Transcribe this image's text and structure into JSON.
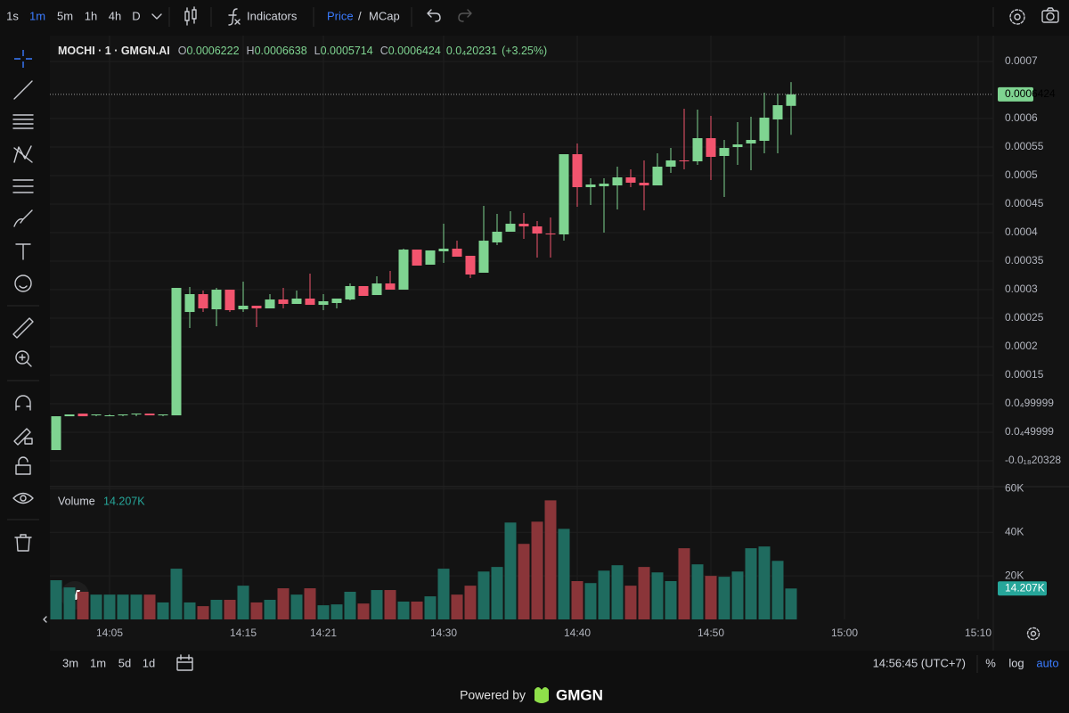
{
  "toolbar": {
    "intervals": [
      "1s",
      "1m",
      "5m",
      "1h",
      "4h",
      "D"
    ],
    "active_interval": 1,
    "indicators": "Indicators",
    "price": "Price",
    "separator": "/",
    "mcap": "MCap"
  },
  "legend": {
    "symbol": "MOCHI · 1 · GMGN.AI",
    "o": "O",
    "h": "H",
    "l": "L",
    "c": "C",
    "change": "0.0₄20231",
    "change_pct": "(+3.25%)"
  },
  "chart_data": {
    "type": "candlestick",
    "x": [
      "14:01",
      "14:02",
      "14:03",
      "14:04",
      "14:05",
      "14:06",
      "14:07",
      "14:08",
      "14:09",
      "14:10",
      "14:11",
      "14:12",
      "14:13",
      "14:14",
      "14:15",
      "14:16",
      "14:17",
      "14:18",
      "14:19",
      "14:20",
      "14:21",
      "14:22",
      "14:23",
      "14:24",
      "14:25",
      "14:26",
      "14:27",
      "14:28",
      "14:29",
      "14:30",
      "14:31",
      "14:32",
      "14:33",
      "14:34",
      "14:35",
      "14:36",
      "14:37",
      "14:38",
      "14:39",
      "14:40",
      "14:41",
      "14:42",
      "14:43",
      "14:44",
      "14:45",
      "14:46",
      "14:47",
      "14:48",
      "14:49",
      "14:50",
      "14:51",
      "14:52",
      "14:53",
      "14:54",
      "14:55",
      "14:56"
    ],
    "open": [
      1.88e-05,
      7.81e-05,
      8.28e-05,
      7.97e-05,
      7.97e-05,
      7.97e-05,
      8.13e-05,
      8.28e-05,
      7.97e-05,
      7.97e-05,
      0.0002609,
      0.0002922,
      0.0002656,
      0.0003,
      0.0002656,
      0.0002719,
      0.0002672,
      0.0002828,
      0.000275,
      0.0002844,
      0.0002734,
      0.0002766,
      0.0002828,
      0.0003063,
      0.0002906,
      0.0003109,
      0.0003,
      0.0003703,
      0.0003438,
      0.0003672,
      0.0003719,
      0.0003594,
      0.0003297,
      0.0003828,
      0.0004016,
      0.0004156,
      0.0004109,
      0.0003984,
      0.0003969,
      0.0005375,
      0.0004797,
      0.0004813,
      0.0004828,
      0.0004969,
      0.0004875,
      0.0004828,
      0.0005156,
      0.0005266,
      0.000525,
      0.0005656,
      0.0005344,
      0.00055,
      0.0005563,
      0.0005609,
      0.0005984,
      0.0006222
    ],
    "high": [
      7.81e-05,
      8.13e-05,
      8.28e-05,
      8.13e-05,
      8.13e-05,
      8.13e-05,
      8.28e-05,
      8.28e-05,
      8.13e-05,
      0.0003031,
      0.0003047,
      0.0002984,
      0.0003031,
      0.0003,
      0.0003141,
      0.0002719,
      0.0002922,
      0.0003031,
      0.0002984,
      0.0003281,
      0.0002922,
      0.0002844,
      0.0003109,
      0.0003063,
      0.0003234,
      0.0003328,
      0.0003719,
      0.0003703,
      0.0003688,
      0.0004156,
      0.0003859,
      0.0003594,
      0.0004469,
      0.0004328,
      0.0004375,
      0.0004344,
      0.0004203,
      0.0004266,
      0.0005375,
      0.0005563,
      0.0004953,
      0.0004953,
      0.0005156,
      0.0005109,
      0.0005266,
      0.0005391,
      0.0005484,
      0.0006172,
      0.0006156,
      0.0006047,
      0.0005625,
      0.0005938,
      0.0006031,
      0.0006453,
      0.0006438,
      0.0006638
    ],
    "low": [
      1.88e-05,
      7.81e-05,
      7.81e-05,
      7.81e-05,
      7.81e-05,
      7.81e-05,
      7.81e-05,
      7.97e-05,
      7.81e-05,
      7.97e-05,
      0.0002328,
      0.0002609,
      0.0002359,
      0.0002609,
      0.0002609,
      0.0002344,
      0.0002672,
      0.0002672,
      0.000275,
      0.0002734,
      0.0002641,
      0.0002672,
      0.0002813,
      0.0002891,
      0.0002906,
      0.0003,
      0.0003,
      0.0003422,
      0.0003438,
      0.0003469,
      0.0003578,
      0.0003203,
      0.0003297,
      0.0003781,
      0.0004016,
      0.0003891,
      0.0003563,
      0.0003563,
      0.0003859,
      0.0004453,
      0.0004484,
      0.0004,
      0.0004406,
      0.0004797,
      0.0004391,
      0.0004828,
      0.0005047,
      0.0005109,
      0.0005188,
      0.0004922,
      0.0004625,
      0.0005188,
      0.0005094,
      0.0005391,
      0.0005391,
      0.0005714
    ],
    "close": [
      7.81e-05,
      8.13e-05,
      7.81e-05,
      8.13e-05,
      7.97e-05,
      8.13e-05,
      8.28e-05,
      7.97e-05,
      8.13e-05,
      0.0003031,
      0.0002922,
      0.0002672,
      0.0003,
      0.0002641,
      0.0002719,
      0.0002672,
      0.0002828,
      0.000275,
      0.0002844,
      0.0002734,
      0.0002797,
      0.0002844,
      0.0003063,
      0.0002891,
      0.0003109,
      0.0003,
      0.0003703,
      0.0003422,
      0.0003688,
      0.0003719,
      0.0003578,
      0.0003266,
      0.0003859,
      0.0004016,
      0.0004156,
      0.0004109,
      0.0003984,
      0.0003969,
      0.0005375,
      0.0004797,
      0.0004844,
      0.0004859,
      0.0004969,
      0.0004875,
      0.0004828,
      0.0005156,
      0.0005266,
      0.000525,
      0.0005656,
      0.0005328,
      0.0005484,
      0.0005547,
      0.0005625,
      0.0006016,
      0.0006234,
      0.0006424
    ],
    "up_color": "#7fd491",
    "down_color": "#f2546e",
    "ylim": [
      -4.37e-05,
      0.0007375
    ],
    "yticks": [
      0.0007,
      0.0006,
      0.00055,
      0.0005,
      0.00045,
      0.0004,
      0.00035,
      0.0003,
      0.00025,
      0.0002,
      0.00015,
      {
        "value": 9.9999e-05,
        "label": "0.0₄99999"
      },
      {
        "value": 4.9999e-05,
        "label": "0.0₄49999"
      },
      {
        "value": -2.0328e-19,
        "label": "-0.0₁₈20328"
      }
    ],
    "xticks": [
      "14:05",
      "14:15",
      "14:21",
      "14:30",
      "14:40",
      "14:50",
      "15:00",
      "15:10"
    ],
    "grid": true,
    "volume": {
      "name": "Volume",
      "values": [
        18000,
        14700,
        12700,
        11400,
        11400,
        11400,
        11400,
        11400,
        7800,
        23300,
        7800,
        6100,
        9000,
        9000,
        15500,
        7800,
        9000,
        14300,
        11400,
        14300,
        6500,
        6900,
        12700,
        7300,
        13500,
        13500,
        8200,
        8200,
        10600,
        23300,
        11400,
        15500,
        22000,
        24100,
        44500,
        34700,
        44900,
        54700,
        41600,
        17600,
        16700,
        22400,
        24900,
        15500,
        24100,
        21600,
        17600,
        32700,
        25300,
        20000,
        19600,
        22000,
        32700,
        33500,
        26900,
        14207
      ],
      "value_labels": [
        null,
        null,
        null,
        null,
        null,
        null,
        null,
        null,
        null,
        null,
        null,
        null,
        null,
        null,
        null,
        null,
        null,
        null,
        null,
        null,
        null,
        null,
        null,
        null,
        null,
        null,
        null,
        null,
        null,
        null,
        null,
        null,
        null,
        null,
        null,
        null,
        null,
        null,
        null,
        null,
        null,
        null,
        null,
        null,
        null,
        null,
        null,
        null,
        null,
        null,
        null,
        null,
        null,
        null,
        null,
        "14.207K"
      ],
      "up_color": "#1f6b5f",
      "down_color": "#8a3539",
      "ylim": [
        0,
        61000
      ],
      "yticks": [
        {
          "value": 60000,
          "label": "60K"
        },
        {
          "value": 40000,
          "label": "40K"
        },
        {
          "value": 20000,
          "label": "20K"
        }
      ]
    }
  },
  "footer": {
    "ranges": [
      "3m",
      "1m",
      "5d",
      "1d"
    ],
    "clock": "14:56:45 (UTC+7)",
    "percent": "%",
    "log": "log",
    "auto": "auto"
  },
  "branding": {
    "powered": "Powered by",
    "name": "GMGN"
  }
}
